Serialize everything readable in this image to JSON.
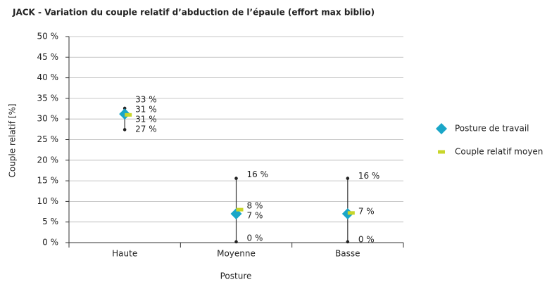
{
  "chart_data": {
    "type": "hilo-marker",
    "title": "JACK - Variation du couple relatif d’abduction de l’épaule (effort max biblio)",
    "x_label": "Posture",
    "y_label": "Couple relatif [%]",
    "categories": [
      "Haute",
      "Moyenne",
      "Basse"
    ],
    "series": [
      {
        "name": "Posture de travail",
        "color": "#1aa6c8",
        "marker": "diamond",
        "values": [
          31.2,
          7,
          7
        ],
        "value_labels": [
          "31 %",
          "7 %",
          "7 %"
        ]
      },
      {
        "name": "Couple relatif moyen",
        "color": "#c8d62a",
        "marker": "dash",
        "values": [
          31,
          8,
          7.2
        ],
        "value_labels": [
          "31 %",
          "8 %",
          null
        ]
      }
    ],
    "max": {
      "values": [
        32.6,
        15.6,
        15.6
      ],
      "value_labels": [
        "33 %",
        "16 %",
        "16 %"
      ]
    },
    "min": {
      "values": [
        27.4,
        0.2,
        0.2
      ],
      "value_labels": [
        "27 %",
        "0 %",
        "0 %"
      ]
    },
    "ylim": [
      0,
      50
    ],
    "yticks": [
      {
        "value": 0,
        "label": "0 %"
      },
      {
        "value": 5,
        "label": "5 %"
      },
      {
        "value": 10,
        "label": "10 %"
      },
      {
        "value": 15,
        "label": "15 %"
      },
      {
        "value": 20,
        "label": "20 %"
      },
      {
        "value": 25,
        "label": "25 %"
      },
      {
        "value": 30,
        "label": "30 %"
      },
      {
        "value": 35,
        "label": "35 %"
      },
      {
        "value": 40,
        "label": "40 %"
      },
      {
        "value": 45,
        "label": "45 %"
      },
      {
        "value": 50,
        "label": "50 %"
      }
    ],
    "grid": true,
    "legend": "right"
  }
}
